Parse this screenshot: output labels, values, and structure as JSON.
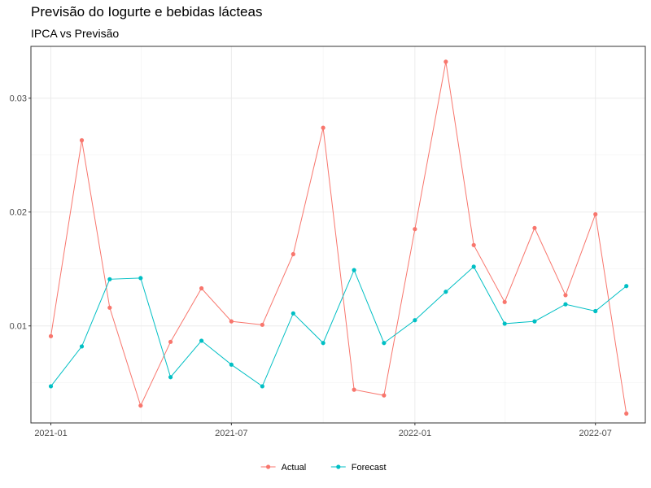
{
  "chart_data": {
    "type": "line",
    "title": "Previsão do Iogurte e bebidas lácteas",
    "subtitle": "IPCA vs Previsão",
    "xlabel": "",
    "ylabel": "",
    "x": [
      "2021-01",
      "2021-02",
      "2021-03",
      "2021-04",
      "2021-05",
      "2021-06",
      "2021-07",
      "2021-08",
      "2021-09",
      "2021-10",
      "2021-11",
      "2021-12",
      "2022-01",
      "2022-02",
      "2022-03",
      "2022-04",
      "2022-05",
      "2022-06",
      "2022-07",
      "2022-08"
    ],
    "x_ticks": [
      "2021-01",
      "2021-07",
      "2022-01",
      "2022-07"
    ],
    "y_ticks": [
      0.01,
      0.02,
      0.03
    ],
    "ylim": [
      0.00148,
      0.03455
    ],
    "xlim": [
      "2020-12-12",
      "2022-08-20"
    ],
    "grid": true,
    "legend_position": "bottom",
    "series": [
      {
        "name": "Actual",
        "color": "#F8766D",
        "values": [
          0.0091,
          0.0263,
          0.0116,
          0.003,
          0.0086,
          0.0133,
          0.0104,
          0.0101,
          0.0163,
          0.0274,
          0.0044,
          0.0039,
          0.0185,
          0.0332,
          0.0171,
          0.0121,
          0.0186,
          0.0127,
          0.0198,
          0.0023
        ]
      },
      {
        "name": "Forecast",
        "color": "#00BFC4",
        "values": [
          0.0047,
          0.0082,
          0.0141,
          0.0142,
          0.0055,
          0.0087,
          0.0066,
          0.0047,
          0.0111,
          0.0085,
          0.0149,
          0.0085,
          0.0105,
          0.013,
          0.0152,
          0.0102,
          0.0104,
          0.0119,
          0.0113,
          0.0135
        ]
      }
    ]
  }
}
